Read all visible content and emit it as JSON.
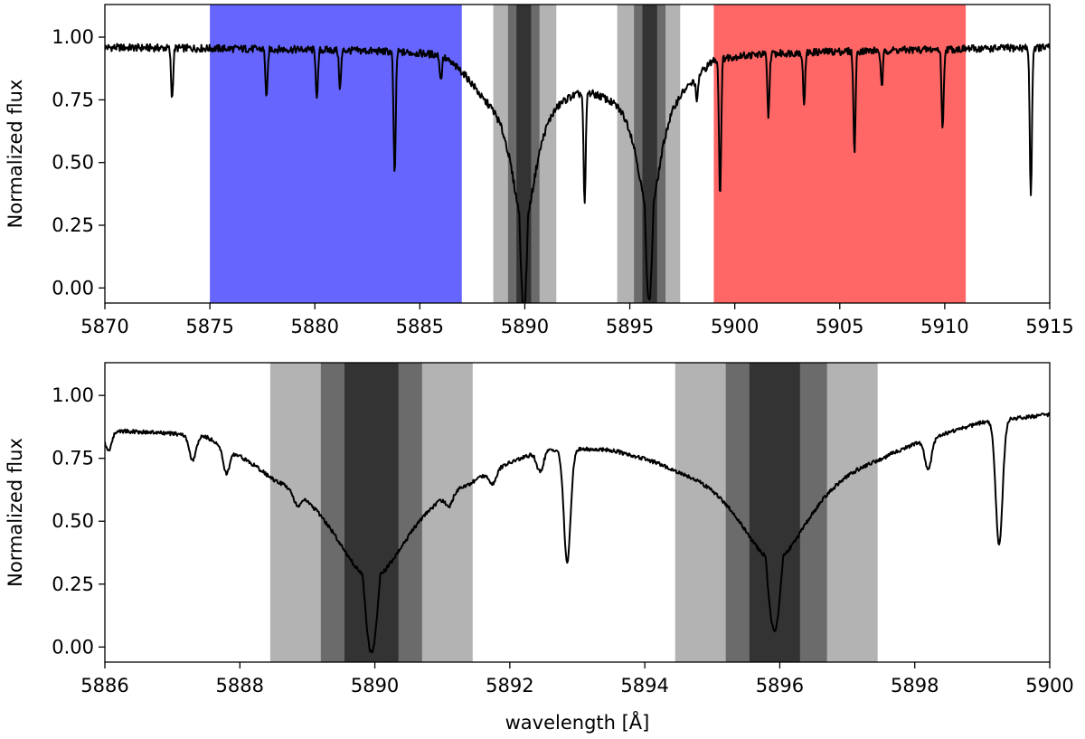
{
  "chart_data": [
    {
      "type": "line",
      "panel": "top",
      "xlabel": "",
      "ylabel": "Normalized flux",
      "xlim": [
        5870,
        5915
      ],
      "ylim": [
        -0.06,
        1.13
      ],
      "x_ticks": [
        "5870",
        "5875",
        "5880",
        "5885",
        "5890",
        "5895",
        "5900",
        "5905",
        "5910",
        "5915"
      ],
      "y_ticks": [
        "0.00",
        "0.25",
        "0.50",
        "0.75",
        "1.00"
      ],
      "bands": [
        {
          "x0": 5875.0,
          "x1": 5887.0,
          "color": "#6666ff"
        },
        {
          "x0": 5899.0,
          "x1": 5911.0,
          "color": "#ff6666"
        },
        {
          "x0": 5888.5,
          "x1": 5891.5,
          "color": "#b3b3b3"
        },
        {
          "x0": 5889.2,
          "x1": 5890.7,
          "color": "#6b6b6b"
        },
        {
          "x0": 5889.6,
          "x1": 5890.3,
          "color": "#333333"
        },
        {
          "x0": 5894.4,
          "x1": 5897.4,
          "color": "#b3b3b3"
        },
        {
          "x0": 5895.2,
          "x1": 5896.7,
          "color": "#6b6b6b"
        },
        {
          "x0": 5895.6,
          "x1": 5896.3,
          "color": "#333333"
        }
      ],
      "continuum": [
        [
          5870,
          0.96
        ],
        [
          5886,
          0.95
        ],
        [
          5887,
          0.9
        ],
        [
          5888,
          0.83
        ],
        [
          5893,
          0.84
        ],
        [
          5894,
          0.83
        ],
        [
          5898,
          0.88
        ],
        [
          5899,
          0.94
        ],
        [
          5915,
          0.96
        ]
      ],
      "broad_lines": [
        {
          "center": 5889.95,
          "depth": 0.92,
          "core_width": 0.2,
          "wing": 0.75
        },
        {
          "center": 5895.92,
          "depth": 0.9,
          "core_width": 0.2,
          "wing": 0.7
        }
      ],
      "narrow_lines": [
        {
          "x": 5873.2,
          "depth": 0.2
        },
        {
          "x": 5877.7,
          "depth": 0.2
        },
        {
          "x": 5880.1,
          "depth": 0.2
        },
        {
          "x": 5881.2,
          "depth": 0.15
        },
        {
          "x": 5883.8,
          "depth": 0.5
        },
        {
          "x": 5886.0,
          "depth": 0.1
        },
        {
          "x": 5892.85,
          "depth": 0.45
        },
        {
          "x": 5898.2,
          "depth": 0.1
        },
        {
          "x": 5899.3,
          "depth": 0.55
        },
        {
          "x": 5901.6,
          "depth": 0.25
        },
        {
          "x": 5903.3,
          "depth": 0.2
        },
        {
          "x": 5905.7,
          "depth": 0.4
        },
        {
          "x": 5907.0,
          "depth": 0.15
        },
        {
          "x": 5909.9,
          "depth": 0.32
        },
        {
          "x": 5914.1,
          "depth": 0.6
        }
      ]
    },
    {
      "type": "line",
      "panel": "bottom",
      "xlabel": "wavelength [Å]",
      "ylabel": "Normalized flux",
      "xlim": [
        5886,
        5900
      ],
      "ylim": [
        -0.06,
        1.13
      ],
      "x_ticks": [
        "5886",
        "5888",
        "5890",
        "5892",
        "5894",
        "5896",
        "5898",
        "5900"
      ],
      "y_ticks": [
        "0.00",
        "0.25",
        "0.50",
        "0.75",
        "1.00"
      ],
      "bands": [
        {
          "x0": 5888.45,
          "x1": 5891.45,
          "color": "#b3b3b3"
        },
        {
          "x0": 5889.2,
          "x1": 5890.7,
          "color": "#6b6b6b"
        },
        {
          "x0": 5889.55,
          "x1": 5890.35,
          "color": "#333333"
        },
        {
          "x0": 5894.45,
          "x1": 5897.45,
          "color": "#b3b3b3"
        },
        {
          "x0": 5895.2,
          "x1": 5896.7,
          "color": "#6b6b6b"
        },
        {
          "x0": 5895.55,
          "x1": 5896.3,
          "color": "#333333"
        }
      ],
      "continuum": [
        [
          5886,
          0.88
        ],
        [
          5887.5,
          0.88
        ],
        [
          5888.5,
          0.77
        ],
        [
          5891.4,
          0.76
        ],
        [
          5892.5,
          0.84
        ],
        [
          5893.5,
          0.84
        ],
        [
          5894.5,
          0.8
        ],
        [
          5897.5,
          0.83
        ],
        [
          5899,
          0.92
        ],
        [
          5900,
          0.94
        ]
      ],
      "broad_lines": [
        {
          "center": 5889.95,
          "depth": 0.78,
          "core_width": 0.13,
          "wing": 0.75
        },
        {
          "center": 5895.92,
          "depth": 0.74,
          "core_width": 0.13,
          "wing": 0.72
        }
      ],
      "narrow_lines": [
        {
          "x": 5886.05,
          "depth": 0.08
        },
        {
          "x": 5887.3,
          "depth": 0.1
        },
        {
          "x": 5887.8,
          "depth": 0.1
        },
        {
          "x": 5888.85,
          "depth": 0.05
        },
        {
          "x": 5891.1,
          "depth": 0.05
        },
        {
          "x": 5891.75,
          "depth": 0.05
        },
        {
          "x": 5892.45,
          "depth": 0.08
        },
        {
          "x": 5892.85,
          "depth": 0.45
        },
        {
          "x": 5898.2,
          "depth": 0.12
        },
        {
          "x": 5899.25,
          "depth": 0.5
        }
      ]
    }
  ]
}
